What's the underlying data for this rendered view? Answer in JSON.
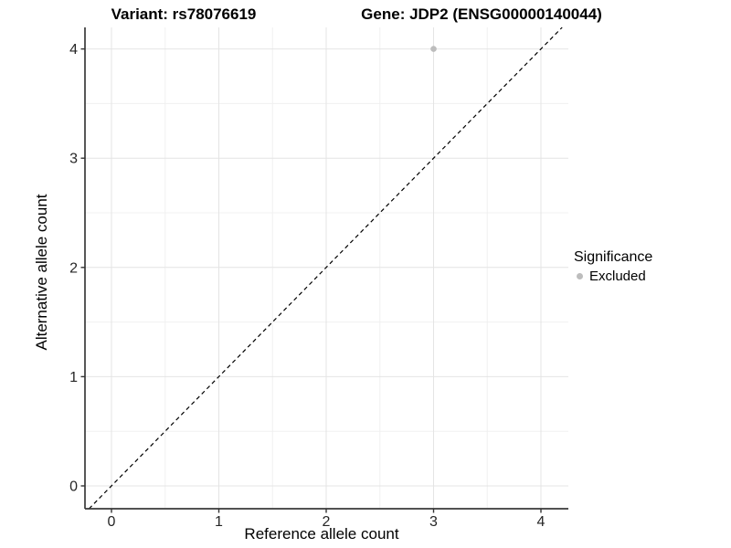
{
  "titles": {
    "variant": "Variant: rs78076619",
    "gene": "Gene: JDP2 (ENSG00000140044)"
  },
  "axes": {
    "x_label": "Reference allele count",
    "y_label": "Alternative allele count"
  },
  "legend": {
    "title": "Significance",
    "items": [
      {
        "label": "Excluded",
        "color": "#bdbdbd"
      }
    ]
  },
  "colors": {
    "grid_major": "#e4e4e4",
    "grid_minor": "#f0f0f0",
    "axis_line": "#3a3a3a",
    "tick_mark": "#333333",
    "tick_label": "#262626",
    "reference_line": "#000000",
    "point": "#bdbdbd"
  },
  "chart_data": {
    "type": "scatter",
    "title": "Variant: rs78076619 | Gene: JDP2 (ENSG00000140044)",
    "xlabel": "Reference allele count",
    "ylabel": "Alternative allele count",
    "xlim": [
      -0.25,
      4.26
    ],
    "ylim": [
      -0.21,
      4.2
    ],
    "x_ticks": [
      0,
      1,
      2,
      3,
      4
    ],
    "y_ticks": [
      0,
      1,
      2,
      3,
      4
    ],
    "x_minor_ticks": [
      0.5,
      1.5,
      2.5,
      3.5
    ],
    "y_minor_ticks": [
      0.5,
      1.5,
      2.5,
      3.5
    ],
    "grid": true,
    "legend_position": "right",
    "series": [
      {
        "name": "Excluded",
        "color": "#bdbdbd",
        "points": [
          {
            "x": 3,
            "y": 4
          }
        ]
      }
    ],
    "reference_line": {
      "type": "abline",
      "slope": 1,
      "intercept": 0,
      "style": "dashed",
      "color": "#000000"
    }
  }
}
